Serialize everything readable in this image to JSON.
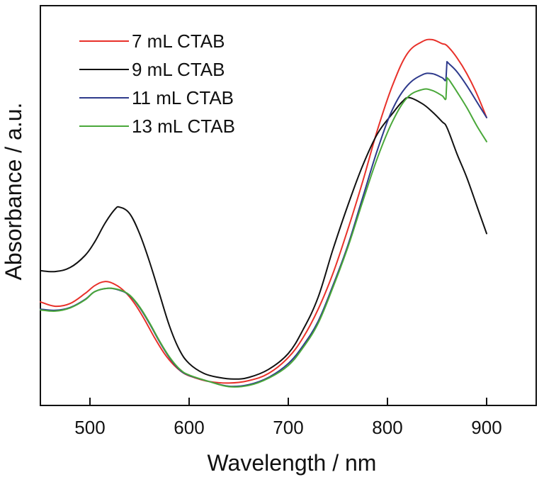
{
  "chart_data": {
    "type": "line",
    "title": "",
    "xlabel": "Wavelength / nm",
    "ylabel": "Absorbance / a.u.",
    "xlim": [
      450,
      950
    ],
    "ylim": [
      0,
      1
    ],
    "y_units_note": "arbitrary units, no y tick labels shown; values normalized to axis height",
    "xticks": [
      500,
      600,
      700,
      800,
      900
    ],
    "xtick_labels": [
      "500",
      "600",
      "700",
      "800",
      "900"
    ],
    "yticks_visible": false,
    "grid": false,
    "legend": {
      "position": "top-left",
      "frame": false
    },
    "series": [
      {
        "name": "7 mL CTAB",
        "color": "#e8312a",
        "points": [
          [
            450,
            0.259
          ],
          [
            465,
            0.248
          ],
          [
            480,
            0.255
          ],
          [
            495,
            0.28
          ],
          [
            505,
            0.3
          ],
          [
            515,
            0.31
          ],
          [
            525,
            0.303
          ],
          [
            535,
            0.285
          ],
          [
            545,
            0.255
          ],
          [
            555,
            0.215
          ],
          [
            565,
            0.17
          ],
          [
            575,
            0.13
          ],
          [
            585,
            0.1
          ],
          [
            595,
            0.08
          ],
          [
            605,
            0.07
          ],
          [
            620,
            0.06
          ],
          [
            640,
            0.056
          ],
          [
            660,
            0.062
          ],
          [
            680,
            0.08
          ],
          [
            700,
            0.12
          ],
          [
            715,
            0.17
          ],
          [
            730,
            0.24
          ],
          [
            745,
            0.33
          ],
          [
            760,
            0.44
          ],
          [
            775,
            0.56
          ],
          [
            790,
            0.69
          ],
          [
            805,
            0.8
          ],
          [
            820,
            0.88
          ],
          [
            835,
            0.91
          ],
          [
            845,
            0.915
          ],
          [
            855,
            0.905
          ],
          [
            860,
            0.9
          ],
          [
            870,
            0.87
          ],
          [
            880,
            0.83
          ],
          [
            890,
            0.78
          ],
          [
            900,
            0.72
          ]
        ]
      },
      {
        "name": "9 mL CTAB",
        "color": "#111111",
        "points": [
          [
            450,
            0.337
          ],
          [
            465,
            0.335
          ],
          [
            480,
            0.345
          ],
          [
            495,
            0.375
          ],
          [
            505,
            0.41
          ],
          [
            515,
            0.455
          ],
          [
            525,
            0.49
          ],
          [
            530,
            0.496
          ],
          [
            540,
            0.48
          ],
          [
            550,
            0.43
          ],
          [
            560,
            0.36
          ],
          [
            570,
            0.28
          ],
          [
            580,
            0.2
          ],
          [
            590,
            0.14
          ],
          [
            600,
            0.105
          ],
          [
            615,
            0.08
          ],
          [
            630,
            0.07
          ],
          [
            645,
            0.066
          ],
          [
            660,
            0.07
          ],
          [
            680,
            0.09
          ],
          [
            700,
            0.13
          ],
          [
            715,
            0.19
          ],
          [
            730,
            0.27
          ],
          [
            745,
            0.39
          ],
          [
            760,
            0.5
          ],
          [
            775,
            0.6
          ],
          [
            790,
            0.68
          ],
          [
            805,
            0.73
          ],
          [
            815,
            0.76
          ],
          [
            822,
            0.77
          ],
          [
            835,
            0.755
          ],
          [
            845,
            0.735
          ],
          [
            855,
            0.71
          ],
          [
            860,
            0.695
          ],
          [
            870,
            0.63
          ],
          [
            880,
            0.57
          ],
          [
            890,
            0.5
          ],
          [
            900,
            0.43
          ]
        ]
      },
      {
        "name": "11 mL CTAB",
        "color": "#2e3a8c",
        "points": [
          [
            450,
            0.241
          ],
          [
            465,
            0.238
          ],
          [
            480,
            0.245
          ],
          [
            495,
            0.265
          ],
          [
            505,
            0.285
          ],
          [
            518,
            0.293
          ],
          [
            530,
            0.288
          ],
          [
            540,
            0.275
          ],
          [
            550,
            0.245
          ],
          [
            560,
            0.205
          ],
          [
            570,
            0.16
          ],
          [
            580,
            0.12
          ],
          [
            590,
            0.09
          ],
          [
            600,
            0.075
          ],
          [
            620,
            0.06
          ],
          [
            640,
            0.048
          ],
          [
            660,
            0.052
          ],
          [
            680,
            0.07
          ],
          [
            700,
            0.105
          ],
          [
            715,
            0.15
          ],
          [
            730,
            0.21
          ],
          [
            745,
            0.3
          ],
          [
            760,
            0.4
          ],
          [
            775,
            0.52
          ],
          [
            790,
            0.64
          ],
          [
            805,
            0.74
          ],
          [
            820,
            0.8
          ],
          [
            835,
            0.827
          ],
          [
            845,
            0.83
          ],
          [
            855,
            0.82
          ],
          [
            859,
            0.815
          ],
          [
            860,
            0.86
          ],
          [
            862,
            0.855
          ],
          [
            870,
            0.835
          ],
          [
            880,
            0.8
          ],
          [
            890,
            0.76
          ],
          [
            900,
            0.72
          ]
        ]
      },
      {
        "name": "13 mL CTAB",
        "color": "#4aa83a",
        "points": [
          [
            450,
            0.239
          ],
          [
            465,
            0.236
          ],
          [
            480,
            0.244
          ],
          [
            495,
            0.264
          ],
          [
            505,
            0.285
          ],
          [
            518,
            0.293
          ],
          [
            530,
            0.289
          ],
          [
            540,
            0.276
          ],
          [
            550,
            0.247
          ],
          [
            560,
            0.207
          ],
          [
            570,
            0.162
          ],
          [
            580,
            0.122
          ],
          [
            590,
            0.092
          ],
          [
            600,
            0.076
          ],
          [
            620,
            0.06
          ],
          [
            640,
            0.047
          ],
          [
            660,
            0.05
          ],
          [
            680,
            0.068
          ],
          [
            700,
            0.1
          ],
          [
            715,
            0.145
          ],
          [
            730,
            0.205
          ],
          [
            745,
            0.295
          ],
          [
            760,
            0.395
          ],
          [
            775,
            0.51
          ],
          [
            790,
            0.62
          ],
          [
            805,
            0.71
          ],
          [
            820,
            0.77
          ],
          [
            835,
            0.79
          ],
          [
            845,
            0.788
          ],
          [
            855,
            0.775
          ],
          [
            859,
            0.768
          ],
          [
            860,
            0.82
          ],
          [
            862,
            0.815
          ],
          [
            870,
            0.785
          ],
          [
            880,
            0.745
          ],
          [
            890,
            0.7
          ],
          [
            900,
            0.66
          ]
        ]
      }
    ]
  }
}
